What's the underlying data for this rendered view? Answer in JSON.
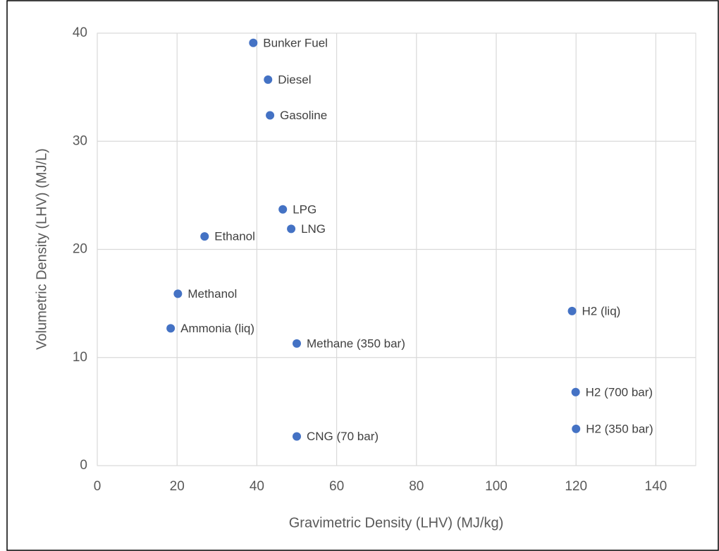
{
  "chart_data": {
    "type": "scatter",
    "x_label": "Gravimetric Density (LHV) (MJ/kg)",
    "y_label": "Volumetric Density (LHV) (MJ/L)",
    "labels": [
      "Bunker Fuel",
      "Diesel",
      "Gasoline",
      "LPG",
      "LNG",
      "Ethanol",
      "Methanol",
      "Ammonia (liq)",
      "Methane (350 bar)",
      "CNG (70 bar)",
      "H2 (liq)",
      "H2 (700 bar)",
      "H2 (350 bar)"
    ],
    "x": [
      39.1,
      42.8,
      43.3,
      46.5,
      48.6,
      26.9,
      20.2,
      18.4,
      50.0,
      50.0,
      119.0,
      119.9,
      120.0
    ],
    "values": [
      39.1,
      35.7,
      32.4,
      23.7,
      21.9,
      21.2,
      15.9,
      12.7,
      11.3,
      2.7,
      14.3,
      6.8,
      3.4
    ],
    "color": "#4472c4",
    "xlim": [
      0,
      150
    ],
    "xticks": [
      0,
      20,
      40,
      60,
      80,
      100,
      120,
      140
    ],
    "ylim": [
      0,
      40
    ],
    "yticks": [
      0,
      10,
      20,
      30,
      40
    ],
    "grid": true
  }
}
